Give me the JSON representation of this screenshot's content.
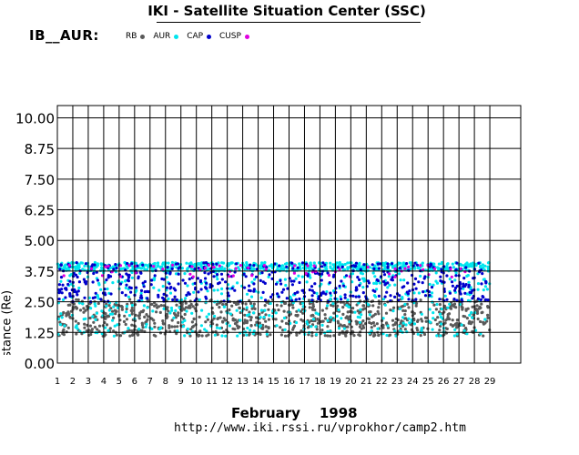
{
  "header": {
    "title": "IKI - Satellite Situation Center (SSC)",
    "instrument": "IB__AUR:"
  },
  "legend": [
    {
      "label": "RB",
      "color": "#5a5a5a"
    },
    {
      "label": "AUR",
      "color": "#00e5ee"
    },
    {
      "label": "CAP",
      "color": "#0000cc"
    },
    {
      "label": "CUSP",
      "color": "#e000e0"
    }
  ],
  "footer": {
    "month": "February",
    "year": "1998",
    "url": "http://www.iki.rssi.ru/vprokhor/camp2.htm"
  },
  "chart_data": {
    "type": "scatter",
    "title": "IKI - Satellite Situation Center (SSC)",
    "ylabel": "Geocentric distance (Re)",
    "xlabel": "February 1998",
    "xlim": [
      1,
      31
    ],
    "ylim": [
      0,
      10.5
    ],
    "yticks": [
      "0.00",
      "1.25",
      "2.50",
      "3.75",
      "5.00",
      "6.25",
      "7.50",
      "8.75",
      "10.00"
    ],
    "xticks": [
      "1",
      "2",
      "3",
      "4",
      "5",
      "6",
      "7",
      "8",
      "9",
      "10",
      "11",
      "12",
      "13",
      "14",
      "15",
      "16",
      "17",
      "18",
      "19",
      "20",
      "21",
      "22",
      "23",
      "24",
      "25",
      "26",
      "27",
      "28",
      "29"
    ],
    "grid": true,
    "data_extent_days": [
      1,
      29
    ],
    "series": [
      {
        "name": "RB",
        "color": "#5a5a5a",
        "range": [
          1.1,
          2.6
        ]
      },
      {
        "name": "AUR",
        "color": "#00e5ee",
        "range": [
          1.1,
          4.1
        ]
      },
      {
        "name": "CAP",
        "color": "#0000cc",
        "range": [
          2.5,
          4.1
        ]
      },
      {
        "name": "CUSP",
        "color": "#e000e0",
        "range": [
          3.5,
          4.0
        ]
      }
    ]
  }
}
